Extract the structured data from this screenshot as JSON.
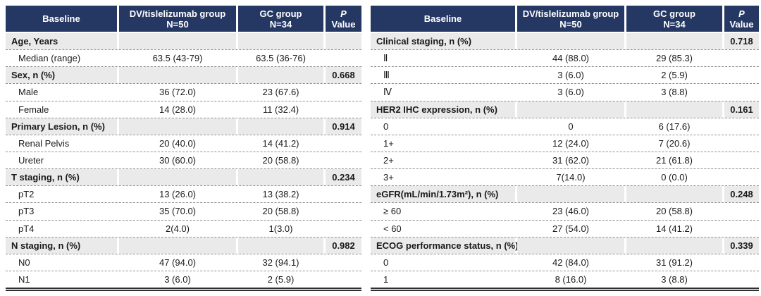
{
  "colors": {
    "header_bg": "#253763",
    "header_text": "#ffffff",
    "section_row_bg": "#eaeaea",
    "dashed_divider": "#8f8f8f",
    "body_text": "#1a1a1a",
    "bottom_rule": "#2f2f2f"
  },
  "chart_data": [
    {
      "type": "table",
      "columns": [
        {
          "label": "Baseline",
          "sub": ""
        },
        {
          "label": "DV/tislelizumab group",
          "sub": "N=50"
        },
        {
          "label": "GC group",
          "sub": "N=34"
        },
        {
          "label": "P",
          "sub": "Value",
          "italic": true
        }
      ],
      "rows": [
        {
          "type": "section",
          "label": "Age, Years",
          "dv": "",
          "gc": "",
          "p": ""
        },
        {
          "type": "data",
          "label": "Median (range)",
          "dv": "63.5 (43-79)",
          "gc": "63.5 (36-76)",
          "p": ""
        },
        {
          "type": "section",
          "label": "Sex, n (%)",
          "dv": "",
          "gc": "",
          "p": "0.668"
        },
        {
          "type": "data",
          "label": "Male",
          "dv": "36 (72.0)",
          "gc": "23 (67.6)",
          "p": ""
        },
        {
          "type": "data",
          "label": "Female",
          "dv": "14 (28.0)",
          "gc": "11 (32.4)",
          "p": ""
        },
        {
          "type": "section",
          "label": "Primary Lesion, n (%)",
          "dv": "",
          "gc": "",
          "p": "0.914"
        },
        {
          "type": "data",
          "label": "Renal Pelvis",
          "dv": "20 (40.0)",
          "gc": "14 (41.2)",
          "p": ""
        },
        {
          "type": "data",
          "label": "Ureter",
          "dv": "30 (60.0)",
          "gc": "20 (58.8)",
          "p": ""
        },
        {
          "type": "section",
          "label": "T staging, n (%)",
          "dv": "",
          "gc": "",
          "p": "0.234"
        },
        {
          "type": "data",
          "label": "pT2",
          "dv": "13 (26.0)",
          "gc": "13 (38.2)",
          "p": ""
        },
        {
          "type": "data",
          "label": "pT3",
          "dv": "35 (70.0)",
          "gc": "20 (58.8)",
          "p": ""
        },
        {
          "type": "data",
          "label": "pT4",
          "dv": "2(4.0)",
          "gc": "1(3.0)",
          "p": ""
        },
        {
          "type": "section",
          "label": "N staging, n (%)",
          "dv": "",
          "gc": "",
          "p": "0.982"
        },
        {
          "type": "data",
          "label": "N0",
          "dv": "47 (94.0)",
          "gc": "32 (94.1)",
          "p": ""
        },
        {
          "type": "data",
          "label": "N1",
          "dv": "3 (6.0)",
          "gc": "2 (5.9)",
          "p": ""
        }
      ]
    },
    {
      "type": "table",
      "columns": [
        {
          "label": "Baseline",
          "sub": ""
        },
        {
          "label": "DV/tislelizumab group",
          "sub": "N=50"
        },
        {
          "label": "GC group",
          "sub": "N=34"
        },
        {
          "label": "P",
          "sub": "Value",
          "italic": true
        }
      ],
      "rows": [
        {
          "type": "section",
          "label": "Clinical staging, n (%)",
          "dv": "",
          "gc": "",
          "p": "0.718"
        },
        {
          "type": "data",
          "label": "Ⅱ",
          "dv": "44 (88.0)",
          "gc": "29 (85.3)",
          "p": ""
        },
        {
          "type": "data",
          "label": "Ⅲ",
          "dv": "3 (6.0)",
          "gc": "2 (5.9)",
          "p": ""
        },
        {
          "type": "data",
          "label": "Ⅳ",
          "dv": "3 (6.0)",
          "gc": "3 (8.8)",
          "p": ""
        },
        {
          "type": "section",
          "label": "HER2 IHC expression, n (%)",
          "dv": "",
          "gc": "",
          "p": "0.161"
        },
        {
          "type": "data",
          "label": "0",
          "dv": "0",
          "gc": "6 (17.6)",
          "p": ""
        },
        {
          "type": "data",
          "label": "1+",
          "dv": "12 (24.0)",
          "gc": "7 (20.6)",
          "p": ""
        },
        {
          "type": "data",
          "label": "2+",
          "dv": "31 (62.0)",
          "gc": "21 (61.8)",
          "p": ""
        },
        {
          "type": "data",
          "label": "3+",
          "dv": "7(14.0)",
          "gc": "0 (0.0)",
          "p": ""
        },
        {
          "type": "section",
          "label": "eGFR(mL/min/1.73m²), n (%)",
          "dv": "",
          "gc": "",
          "p": "0.248"
        },
        {
          "type": "data",
          "label": "≥ 60",
          "dv": "23 (46.0)",
          "gc": "20 (58.8)",
          "p": ""
        },
        {
          "type": "data",
          "label": "< 60",
          "dv": "27 (54.0)",
          "gc": "14 (41.2)",
          "p": ""
        },
        {
          "type": "section",
          "label": "ECOG performance status, n (%)",
          "dv": "",
          "gc": "",
          "p": "0.339"
        },
        {
          "type": "data",
          "label": "0",
          "dv": "42 (84.0)",
          "gc": "31 (91.2)",
          "p": ""
        },
        {
          "type": "data",
          "label": "1",
          "dv": "8 (16.0)",
          "gc": "3 (8.8)",
          "p": ""
        }
      ]
    }
  ]
}
